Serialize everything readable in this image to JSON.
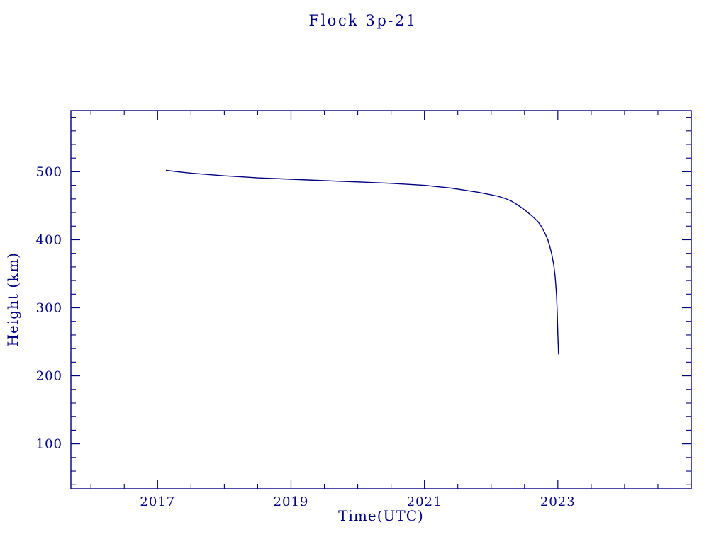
{
  "page": {
    "background": "#ffffff"
  },
  "chart_data": {
    "type": "line",
    "title": "Flock 3p-21",
    "xlabel": "Time(UTC)",
    "ylabel": "Height (km)",
    "xlim": [
      2015.7,
      2025.0
    ],
    "ylim": [
      34,
      590
    ],
    "x_major_ticks": [
      2017,
      2019,
      2021,
      2023
    ],
    "x_minor_step": 0.5,
    "y_major_ticks": [
      100,
      200,
      300,
      400,
      500
    ],
    "y_minor_step": 20,
    "grid": false,
    "legend": "none",
    "axis_color": "#000080",
    "line_color": "#000080",
    "series": [
      {
        "name": "Flock 3p-21 height",
        "points": [
          [
            2017.13,
            502
          ],
          [
            2017.3,
            500
          ],
          [
            2017.5,
            498
          ],
          [
            2017.75,
            496
          ],
          [
            2018.0,
            494
          ],
          [
            2018.25,
            492.5
          ],
          [
            2018.5,
            491
          ],
          [
            2018.75,
            490
          ],
          [
            2019.0,
            489
          ],
          [
            2019.25,
            488
          ],
          [
            2019.5,
            487
          ],
          [
            2019.75,
            486
          ],
          [
            2020.0,
            485
          ],
          [
            2020.25,
            484
          ],
          [
            2020.5,
            483
          ],
          [
            2020.75,
            481.5
          ],
          [
            2021.0,
            480
          ],
          [
            2021.2,
            478
          ],
          [
            2021.4,
            476
          ],
          [
            2021.6,
            473
          ],
          [
            2021.8,
            470
          ],
          [
            2021.95,
            467
          ],
          [
            2022.1,
            464
          ],
          [
            2022.2,
            461
          ],
          [
            2022.3,
            457
          ],
          [
            2022.4,
            451
          ],
          [
            2022.5,
            444
          ],
          [
            2022.6,
            436
          ],
          [
            2022.7,
            427
          ],
          [
            2022.75,
            420
          ],
          [
            2022.8,
            411
          ],
          [
            2022.85,
            400
          ],
          [
            2022.88,
            390
          ],
          [
            2022.91,
            378
          ],
          [
            2022.94,
            362
          ],
          [
            2022.96,
            345
          ],
          [
            2022.98,
            320
          ],
          [
            2022.99,
            295
          ],
          [
            2023.0,
            262
          ],
          [
            2023.01,
            232
          ]
        ]
      }
    ]
  }
}
